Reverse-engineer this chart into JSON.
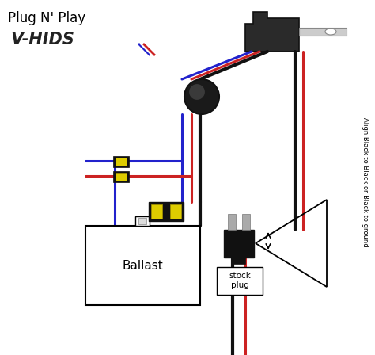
{
  "title": "Plug N' Play",
  "logo_text": "V-HIDS",
  "background_color": "#f0f0f0",
  "wire_colors": {
    "blue": "#2222cc",
    "red": "#cc2222",
    "black": "#111111",
    "yellow": "#ddcc00",
    "gray": "#999999",
    "white": "#ffffff"
  },
  "labels": {
    "ballast": "Ballast",
    "stock_plug": "stock\nplug",
    "align_text": "Align Black to Black or Black to ground"
  },
  "fig_width": 4.74,
  "fig_height": 4.48,
  "dpi": 100
}
